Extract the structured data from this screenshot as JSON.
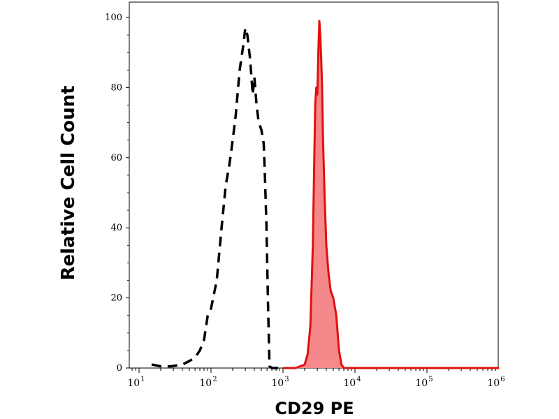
{
  "chart_data": {
    "type": "area",
    "title": "",
    "xlabel": "CD29 PE",
    "ylabel": "Relative Cell Count",
    "x_scale": "log",
    "xlim": [
      7,
      1200000
    ],
    "ylim": [
      0,
      100
    ],
    "grid": false,
    "y_ticks": [
      "0",
      "20",
      "40",
      "60",
      "80",
      "100"
    ],
    "x_ticks": [
      {
        "base": "10",
        "exp": "1",
        "value": 10
      },
      {
        "base": "10",
        "exp": "2",
        "value": 100
      },
      {
        "base": "10",
        "exp": "3",
        "value": 1000
      },
      {
        "base": "10",
        "exp": "4",
        "value": 10000
      },
      {
        "base": "10",
        "exp": "5",
        "value": 100000
      },
      {
        "base": "10",
        "exp": "6",
        "value": 1000000
      }
    ],
    "series": [
      {
        "style": "dashed",
        "color": "#000000",
        "fill": false,
        "x": [
          15,
          20,
          28,
          40,
          50,
          60,
          70,
          80,
          90,
          100,
          120,
          140,
          160,
          180,
          200,
          220,
          250,
          280,
          300,
          320,
          350,
          380,
          400,
          430,
          460,
          500,
          540,
          560,
          590,
          620,
          650,
          700,
          800,
          1000
        ],
        "y": [
          1,
          0.5,
          0.5,
          1,
          2,
          3,
          5,
          8,
          15,
          17,
          25,
          40,
          52,
          58,
          65,
          72,
          85,
          92,
          97,
          95,
          88,
          78,
          83,
          75,
          70,
          68,
          64,
          55,
          40,
          18,
          0.5,
          0,
          0,
          0
        ]
      },
      {
        "style": "solid",
        "color": "#e01010",
        "fill": true,
        "fill_color": "#f4888a",
        "x": [
          1000,
          1500,
          2000,
          2200,
          2400,
          2600,
          2700,
          2800,
          2900,
          3000,
          3100,
          3200,
          3300,
          3400,
          3500,
          3600,
          3800,
          4000,
          4300,
          4600,
          5000,
          5500,
          6000,
          6500,
          7000,
          10000,
          100000,
          1000000
        ],
        "y": [
          0,
          0,
          1,
          4,
          12,
          35,
          55,
          75,
          80,
          78,
          90,
          99,
          95,
          88,
          80,
          65,
          48,
          35,
          27,
          22,
          20,
          15,
          5,
          1,
          0,
          0,
          0,
          0
        ]
      }
    ]
  }
}
